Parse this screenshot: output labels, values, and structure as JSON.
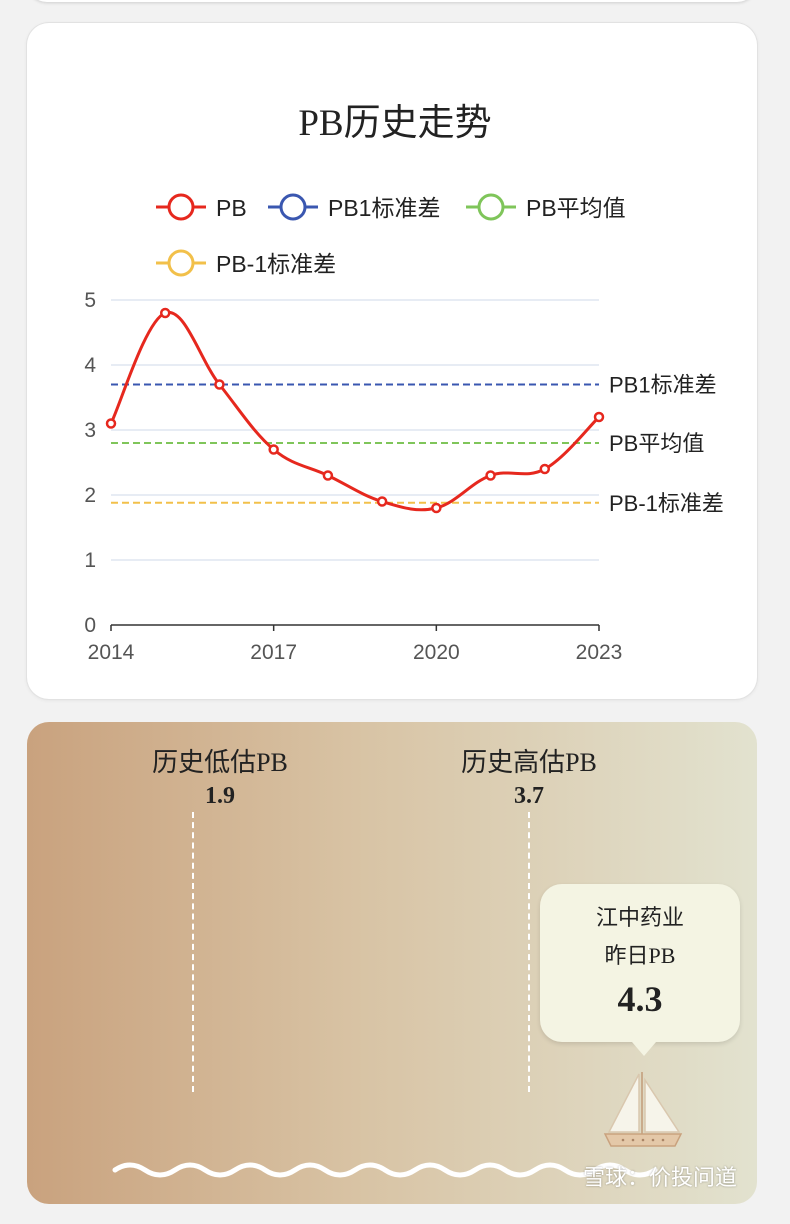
{
  "colors": {
    "pb": "#e6281e",
    "pb_plus1": "#3a57b0",
    "pb_mean": "#7fc55a",
    "pb_minus1": "#f2c04a",
    "grid": "#dfe6f0",
    "axis": "#333333",
    "tick_text": "#555555"
  },
  "chart_data": {
    "type": "line",
    "title": "PB历史走势",
    "x": [
      2014,
      2015,
      2016,
      2017,
      2018,
      2019,
      2020,
      2021,
      2022,
      2023
    ],
    "x_tick_labels": [
      "2014",
      "2017",
      "2020",
      "2023"
    ],
    "y_tick_labels": [
      "0",
      "1",
      "2",
      "3",
      "4",
      "5"
    ],
    "ylim": [
      0,
      5
    ],
    "xlim": [
      2014,
      2023
    ],
    "grid": true,
    "legend_position": "top",
    "series": [
      {
        "name": "PB",
        "values": [
          3.1,
          4.8,
          3.7,
          2.7,
          2.3,
          1.9,
          1.8,
          2.3,
          2.4,
          3.2
        ]
      }
    ],
    "reference_lines": [
      {
        "name": "PB1标准差",
        "label": "PB1标准差",
        "value": 3.7
      },
      {
        "name": "PB平均值",
        "label": "PB平均值",
        "value": 2.8
      },
      {
        "name": "PB-1标准差",
        "label": "PB-1标准差",
        "value": 1.88
      }
    ],
    "legend": [
      "PB",
      "PB1标准差",
      "PB平均值",
      "PB-1标准差"
    ]
  },
  "valuation": {
    "low_label": "历史低估PB",
    "low_value": "1.9",
    "high_label": "历史高估PB",
    "high_value": "3.7",
    "company": "江中药业",
    "current_label": "昨日PB",
    "current_value": "4.3"
  },
  "watermark": "雪球：价投问道"
}
